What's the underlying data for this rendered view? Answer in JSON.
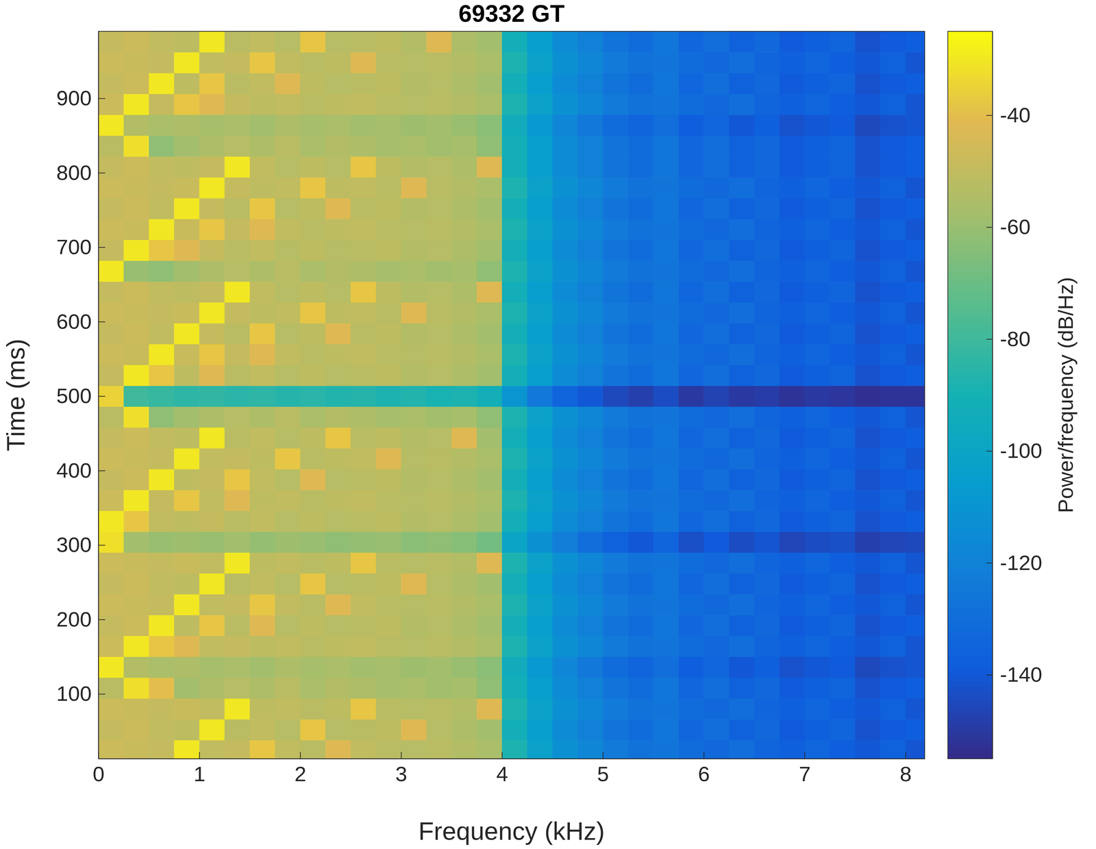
{
  "chart_data": {
    "type": "heatmap",
    "title": "69332 GT",
    "x_label": "Frequency (kHz)",
    "y_label": "Time (ms)",
    "xlim": [
      0,
      8.19
    ],
    "ylim": [
      13,
      990
    ],
    "xticks": [
      0,
      1,
      2,
      3,
      4,
      5,
      6,
      7,
      8
    ],
    "yticks": [
      100,
      200,
      300,
      400,
      500,
      600,
      700,
      800,
      900
    ],
    "x": [
      0.125,
      0.375,
      0.625,
      0.875,
      1.125,
      1.375,
      1.625,
      1.875,
      2.125,
      2.375,
      2.625,
      2.875,
      3.125,
      3.375,
      3.625,
      3.875,
      4.125,
      4.375,
      4.625,
      4.875,
      5.125,
      5.375,
      5.625,
      5.875,
      6.125,
      6.375,
      6.625,
      6.875,
      7.125,
      7.375,
      7.625,
      7.875,
      8.125
    ],
    "y": [
      24,
      52,
      80,
      108,
      136,
      164,
      192,
      220,
      248,
      276,
      304,
      332,
      360,
      388,
      416,
      444,
      472,
      500,
      528,
      556,
      584,
      612,
      640,
      668,
      696,
      724,
      752,
      780,
      808,
      836,
      864,
      892,
      920,
      948,
      976
    ],
    "z": [
      [
        -47,
        -48,
        -49,
        -30,
        -50,
        -49,
        -38,
        -50,
        -52,
        -42,
        -50,
        -52,
        -53,
        -52,
        -54,
        -56,
        -88,
        -102,
        -112,
        -118,
        -124,
        -128,
        -127,
        -131,
        -133,
        -130,
        -135,
        -137,
        -134,
        -138,
        -140,
        -136,
        -141
      ],
      [
        -49,
        -47,
        -50,
        -51,
        -30,
        -52,
        -50,
        -53,
        -38,
        -53,
        -52,
        -51,
        -42,
        -53,
        -55,
        -58,
        -92,
        -105,
        -115,
        -121,
        -127,
        -131,
        -126,
        -134,
        -130,
        -136,
        -133,
        -139,
        -137,
        -135,
        -142,
        -139,
        -138
      ],
      [
        -47,
        -48,
        -49,
        -48,
        -50,
        -30,
        -51,
        -50,
        -52,
        -51,
        -38,
        -52,
        -53,
        -52,
        -54,
        -42,
        -88,
        -102,
        -112,
        -118,
        -124,
        -128,
        -127,
        -131,
        -133,
        -130,
        -135,
        -137,
        -134,
        -138,
        -140,
        -136,
        -141
      ],
      [
        -52,
        -32,
        -40,
        -58,
        -55,
        -53,
        -55,
        -52,
        -56,
        -54,
        -55,
        -57,
        -56,
        -58,
        -57,
        -62,
        -92,
        -105,
        -115,
        -121,
        -127,
        -131,
        -126,
        -134,
        -130,
        -136,
        -133,
        -139,
        -137,
        -135,
        -142,
        -139,
        -138
      ],
      [
        -30,
        -54,
        -56,
        -55,
        -57,
        -56,
        -58,
        -55,
        -57,
        -56,
        -58,
        -57,
        -59,
        -58,
        -60,
        -63,
        -95,
        -108,
        -118,
        -125,
        -131,
        -135,
        -130,
        -138,
        -134,
        -140,
        -137,
        -142,
        -140,
        -139,
        -145,
        -142,
        -141
      ],
      [
        -47,
        -30,
        -38,
        -42,
        -50,
        -49,
        -51,
        -50,
        -52,
        -51,
        -50,
        -52,
        -53,
        -52,
        -54,
        -56,
        -88,
        -102,
        -112,
        -118,
        -124,
        -128,
        -127,
        -131,
        -133,
        -130,
        -135,
        -137,
        -134,
        -138,
        -140,
        -136,
        -141
      ],
      [
        -49,
        -47,
        -30,
        -51,
        -38,
        -52,
        -42,
        -53,
        -51,
        -53,
        -52,
        -51,
        -54,
        -53,
        -55,
        -58,
        -92,
        -105,
        -115,
        -121,
        -127,
        -131,
        -126,
        -134,
        -130,
        -136,
        -133,
        -139,
        -137,
        -135,
        -142,
        -139,
        -138
      ],
      [
        -47,
        -48,
        -49,
        -30,
        -50,
        -49,
        -38,
        -50,
        -52,
        -42,
        -50,
        -52,
        -53,
        -52,
        -54,
        -56,
        -88,
        -102,
        -112,
        -118,
        -124,
        -128,
        -127,
        -131,
        -133,
        -130,
        -135,
        -137,
        -134,
        -138,
        -140,
        -136,
        -141
      ],
      [
        -49,
        -47,
        -50,
        -51,
        -30,
        -52,
        -50,
        -53,
        -38,
        -53,
        -52,
        -51,
        -42,
        -53,
        -55,
        -58,
        -92,
        -105,
        -115,
        -121,
        -127,
        -131,
        -126,
        -134,
        -130,
        -136,
        -133,
        -139,
        -137,
        -135,
        -142,
        -139,
        -138
      ],
      [
        -47,
        -48,
        -49,
        -48,
        -50,
        -30,
        -51,
        -50,
        -52,
        -51,
        -38,
        -52,
        -53,
        -52,
        -54,
        -42,
        -88,
        -102,
        -112,
        -118,
        -124,
        -128,
        -127,
        -131,
        -133,
        -130,
        -135,
        -137,
        -134,
        -138,
        -140,
        -136,
        -141
      ],
      [
        -32,
        -58,
        -60,
        -59,
        -60,
        -58,
        -61,
        -59,
        -60,
        -62,
        -61,
        -60,
        -63,
        -62,
        -64,
        -68,
        -100,
        -112,
        -122,
        -130,
        -136,
        -140,
        -135,
        -143,
        -139,
        -144,
        -141,
        -146,
        -144,
        -143,
        -148,
        -146,
        -145
      ],
      [
        -30,
        -38,
        -50,
        -51,
        -49,
        -52,
        -50,
        -53,
        -51,
        -53,
        -52,
        -51,
        -54,
        -53,
        -55,
        -58,
        -92,
        -105,
        -115,
        -121,
        -127,
        -131,
        -126,
        -134,
        -130,
        -136,
        -133,
        -139,
        -137,
        -135,
        -142,
        -139,
        -138
      ],
      [
        -47,
        -30,
        -49,
        -38,
        -50,
        -42,
        -51,
        -50,
        -52,
        -51,
        -50,
        -52,
        -53,
        -52,
        -54,
        -56,
        -88,
        -102,
        -112,
        -118,
        -124,
        -128,
        -127,
        -131,
        -133,
        -130,
        -135,
        -137,
        -134,
        -138,
        -140,
        -136,
        -141
      ],
      [
        -49,
        -47,
        -30,
        -51,
        -49,
        -38,
        -50,
        -53,
        -42,
        -53,
        -52,
        -51,
        -54,
        -53,
        -55,
        -58,
        -92,
        -105,
        -115,
        -121,
        -127,
        -131,
        -126,
        -134,
        -130,
        -136,
        -133,
        -139,
        -137,
        -135,
        -142,
        -139,
        -138
      ],
      [
        -47,
        -48,
        -49,
        -30,
        -50,
        -49,
        -51,
        -38,
        -52,
        -51,
        -50,
        -42,
        -53,
        -52,
        -54,
        -56,
        -88,
        -102,
        -112,
        -118,
        -124,
        -128,
        -127,
        -131,
        -133,
        -130,
        -135,
        -137,
        -134,
        -138,
        -140,
        -136,
        -141
      ],
      [
        -49,
        -47,
        -50,
        -51,
        -30,
        -52,
        -50,
        -53,
        -51,
        -38,
        -52,
        -51,
        -54,
        -53,
        -42,
        -58,
        -92,
        -105,
        -115,
        -121,
        -127,
        -131,
        -126,
        -134,
        -130,
        -136,
        -133,
        -139,
        -137,
        -135,
        -142,
        -139,
        -138
      ],
      [
        -52,
        -32,
        -62,
        -58,
        -55,
        -53,
        -55,
        -52,
        -56,
        -54,
        -55,
        -57,
        -56,
        -58,
        -57,
        -62,
        -88,
        -102,
        -112,
        -118,
        -124,
        -128,
        -127,
        -131,
        -133,
        -130,
        -135,
        -137,
        -134,
        -138,
        -140,
        -136,
        -141
      ],
      [
        -35,
        -80,
        -82,
        -84,
        -83,
        -85,
        -84,
        -86,
        -85,
        -87,
        -86,
        -88,
        -87,
        -89,
        -88,
        -92,
        -110,
        -125,
        -135,
        -140,
        -145,
        -148,
        -144,
        -150,
        -147,
        -150,
        -149,
        -152,
        -150,
        -151,
        -153,
        -152,
        -152
      ],
      [
        -49,
        -30,
        -38,
        -51,
        -42,
        -52,
        -50,
        -53,
        -51,
        -53,
        -52,
        -51,
        -54,
        -53,
        -55,
        -58,
        -92,
        -105,
        -115,
        -121,
        -127,
        -131,
        -126,
        -134,
        -130,
        -136,
        -133,
        -139,
        -137,
        -135,
        -142,
        -139,
        -138
      ],
      [
        -47,
        -48,
        -30,
        -48,
        -38,
        -49,
        -42,
        -50,
        -52,
        -51,
        -50,
        -52,
        -53,
        -52,
        -54,
        -56,
        -88,
        -102,
        -112,
        -118,
        -124,
        -128,
        -127,
        -131,
        -133,
        -130,
        -135,
        -137,
        -134,
        -138,
        -140,
        -136,
        -141
      ],
      [
        -49,
        -47,
        -50,
        -30,
        -49,
        -52,
        -38,
        -53,
        -51,
        -42,
        -52,
        -51,
        -54,
        -53,
        -55,
        -58,
        -92,
        -105,
        -115,
        -121,
        -127,
        -131,
        -126,
        -134,
        -130,
        -136,
        -133,
        -139,
        -137,
        -135,
        -142,
        -139,
        -138
      ],
      [
        -47,
        -48,
        -49,
        -48,
        -30,
        -49,
        -51,
        -50,
        -38,
        -51,
        -50,
        -52,
        -42,
        -52,
        -54,
        -56,
        -88,
        -102,
        -112,
        -118,
        -124,
        -128,
        -127,
        -131,
        -133,
        -130,
        -135,
        -137,
        -134,
        -138,
        -140,
        -136,
        -141
      ],
      [
        -49,
        -47,
        -50,
        -51,
        -49,
        -30,
        -50,
        -53,
        -51,
        -53,
        -38,
        -51,
        -54,
        -53,
        -55,
        -42,
        -92,
        -105,
        -115,
        -121,
        -127,
        -131,
        -126,
        -134,
        -130,
        -136,
        -133,
        -139,
        -137,
        -135,
        -142,
        -139,
        -138
      ],
      [
        -30,
        -60,
        -62,
        -58,
        -55,
        -53,
        -55,
        -52,
        -56,
        -54,
        -55,
        -57,
        -56,
        -58,
        -57,
        -62,
        -88,
        -102,
        -112,
        -118,
        -124,
        -128,
        -127,
        -131,
        -133,
        -130,
        -135,
        -137,
        -134,
        -138,
        -140,
        -136,
        -141
      ],
      [
        -49,
        -30,
        -38,
        -42,
        -49,
        -52,
        -50,
        -53,
        -51,
        -53,
        -52,
        -51,
        -54,
        -53,
        -55,
        -58,
        -92,
        -105,
        -115,
        -121,
        -127,
        -131,
        -126,
        -134,
        -130,
        -136,
        -133,
        -139,
        -137,
        -135,
        -142,
        -139,
        -138
      ],
      [
        -47,
        -48,
        -30,
        -48,
        -38,
        -49,
        -42,
        -50,
        -52,
        -51,
        -50,
        -52,
        -53,
        -52,
        -54,
        -56,
        -88,
        -102,
        -112,
        -118,
        -124,
        -128,
        -127,
        -131,
        -133,
        -130,
        -135,
        -137,
        -134,
        -138,
        -140,
        -136,
        -141
      ],
      [
        -49,
        -47,
        -50,
        -30,
        -49,
        -52,
        -38,
        -53,
        -51,
        -42,
        -52,
        -51,
        -54,
        -53,
        -55,
        -58,
        -92,
        -105,
        -115,
        -121,
        -127,
        -131,
        -126,
        -134,
        -130,
        -136,
        -133,
        -139,
        -137,
        -135,
        -142,
        -139,
        -138
      ],
      [
        -47,
        -48,
        -49,
        -48,
        -30,
        -49,
        -51,
        -50,
        -38,
        -51,
        -50,
        -52,
        -42,
        -52,
        -54,
        -56,
        -88,
        -102,
        -112,
        -118,
        -124,
        -128,
        -127,
        -131,
        -133,
        -130,
        -135,
        -137,
        -134,
        -138,
        -140,
        -136,
        -141
      ],
      [
        -49,
        -47,
        -50,
        -51,
        -49,
        -30,
        -50,
        -53,
        -51,
        -53,
        -38,
        -51,
        -54,
        -53,
        -55,
        -42,
        -92,
        -105,
        -115,
        -121,
        -127,
        -131,
        -126,
        -134,
        -130,
        -136,
        -133,
        -139,
        -137,
        -135,
        -142,
        -139,
        -138
      ],
      [
        -52,
        -32,
        -62,
        -58,
        -55,
        -53,
        -55,
        -52,
        -56,
        -54,
        -55,
        -57,
        -56,
        -58,
        -57,
        -62,
        -92,
        -105,
        -115,
        -121,
        -127,
        -131,
        -126,
        -134,
        -130,
        -136,
        -133,
        -139,
        -137,
        -135,
        -142,
        -139,
        -138
      ],
      [
        -30,
        -54,
        -56,
        -55,
        -57,
        -56,
        -58,
        -55,
        -57,
        -56,
        -58,
        -57,
        -59,
        -58,
        -60,
        -63,
        -95,
        -108,
        -118,
        -125,
        -131,
        -135,
        -130,
        -138,
        -134,
        -140,
        -137,
        -142,
        -140,
        -139,
        -145,
        -142,
        -141
      ],
      [
        -47,
        -30,
        -49,
        -38,
        -42,
        -49,
        -51,
        -50,
        -52,
        -51,
        -50,
        -52,
        -53,
        -52,
        -54,
        -56,
        -88,
        -102,
        -112,
        -118,
        -124,
        -128,
        -127,
        -131,
        -133,
        -130,
        -135,
        -137,
        -134,
        -138,
        -140,
        -136,
        -141
      ],
      [
        -49,
        -47,
        -30,
        -51,
        -38,
        -52,
        -50,
        -42,
        -51,
        -53,
        -52,
        -51,
        -54,
        -53,
        -55,
        -58,
        -92,
        -105,
        -115,
        -121,
        -127,
        -131,
        -126,
        -134,
        -130,
        -136,
        -133,
        -139,
        -137,
        -135,
        -142,
        -139,
        -138
      ],
      [
        -47,
        -48,
        -49,
        -30,
        -50,
        -49,
        -38,
        -50,
        -52,
        -51,
        -42,
        -52,
        -53,
        -52,
        -54,
        -56,
        -88,
        -102,
        -112,
        -118,
        -124,
        -128,
        -127,
        -131,
        -133,
        -130,
        -135,
        -137,
        -134,
        -138,
        -140,
        -136,
        -141
      ],
      [
        -49,
        -47,
        -50,
        -51,
        -30,
        -52,
        -50,
        -53,
        -38,
        -53,
        -52,
        -51,
        -54,
        -42,
        -55,
        -58,
        -92,
        -105,
        -115,
        -121,
        -127,
        -131,
        -126,
        -134,
        -130,
        -136,
        -133,
        -139,
        -137,
        -135,
        -142,
        -139,
        -138
      ]
    ],
    "colorbar": {
      "range": [
        -155,
        -25
      ],
      "ticks": [
        -140,
        -120,
        -100,
        -80,
        -60,
        -40
      ],
      "label": "Power/frequency (dB/Hz)"
    }
  }
}
